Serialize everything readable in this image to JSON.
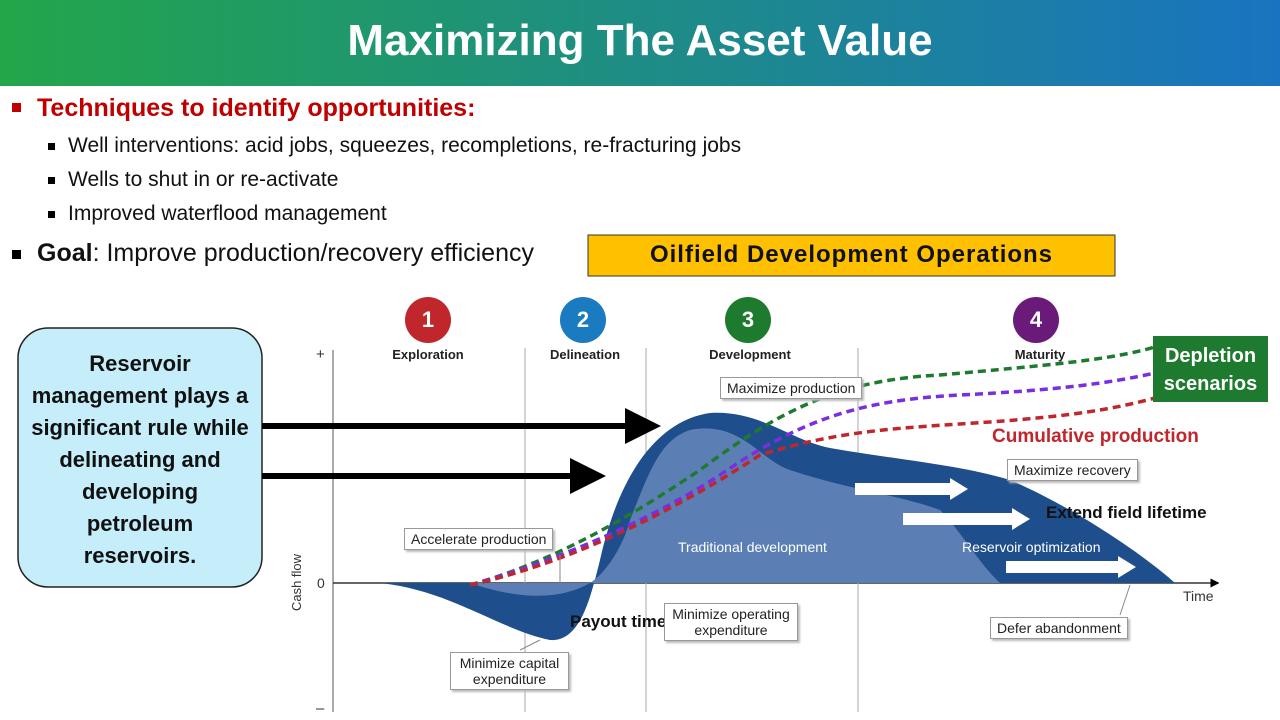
{
  "header": {
    "title": "Maximizing The Asset Value"
  },
  "bullets": {
    "heading": "Techniques to identify opportunities:",
    "items": [
      "Well interventions: acid jobs, squeezes, recompletions, re-fracturing jobs",
      "Wells to shut in or re-activate",
      "Improved waterflood management"
    ],
    "goal_label": "Goal",
    "goal_text": ": Improve production/recovery efficiency"
  },
  "callout": {
    "text": "Reservoir management plays a significant rule while delineating and developing petroleum reservoirs."
  },
  "diagram": {
    "banner": "Oilfield Development Operations",
    "phases": [
      {
        "number": 1,
        "label": "Exploration"
      },
      {
        "number": 2,
        "label": "Delineation"
      },
      {
        "number": 3,
        "label": "Development"
      },
      {
        "number": 4,
        "label": "Maturity"
      }
    ],
    "axis": {
      "plus": "+",
      "zero": "0",
      "minus": "–",
      "y_label": "Cash flow",
      "x_label": "Time"
    },
    "annotations": {
      "maximize_production": "Maximize production",
      "maximize_recovery": "Maximize recovery",
      "extend_lifetime": "Extend field lifetime",
      "accelerate_production": "Accelerate production",
      "traditional_development": "Traditional development",
      "reservoir_optimization": "Reservoir optimization",
      "payout_time": "Payout time",
      "minimize_opex": "Minimize operating expenditure",
      "minimize_capex": "Minimize capital expenditure",
      "defer_abandonment": "Defer abandonment"
    },
    "depletion": "Depletion scenarios",
    "cumulative": "Cumulative production"
  }
}
